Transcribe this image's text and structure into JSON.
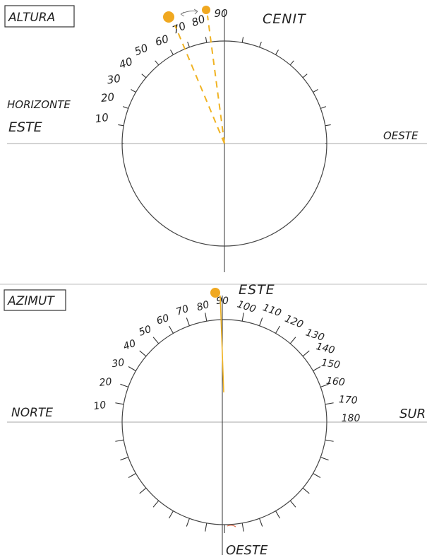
{
  "altura": {
    "box_label": "ALTURA",
    "top_label": "CENIT",
    "left_label_1": "HORIZONTE",
    "left_label_2": "ESTE",
    "right_label": "OESTE",
    "scale": [
      "10",
      "20",
      "30",
      "40",
      "50",
      "60",
      "70",
      "80",
      "90"
    ],
    "sun_positions_deg": [
      65,
      85
    ],
    "colors": {
      "sun": "#f0a820",
      "ray": "#f0b323"
    }
  },
  "azimut": {
    "box_label": "AZIMUT",
    "top_label": "ESTE",
    "left_label": "NORTE",
    "right_label": "SUR",
    "bottom_label": "OESTE",
    "scale": [
      "10",
      "20",
      "30",
      "40",
      "50",
      "60",
      "70",
      "80",
      "90",
      "100",
      "110",
      "120",
      "130",
      "140",
      "150",
      "160",
      "170",
      "180"
    ],
    "sun_position_deg": 90,
    "colors": {
      "sun": "#f0a820",
      "ray": "#f0b323"
    }
  }
}
